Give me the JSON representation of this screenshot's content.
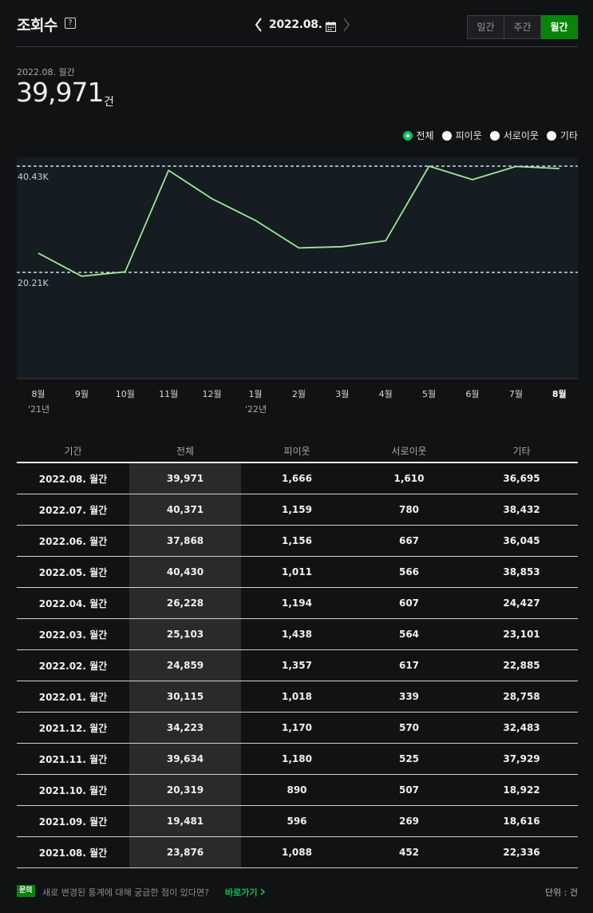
{
  "header": {
    "title": "조회수",
    "help_icon": "?",
    "current_period": "2022.08.",
    "period_tabs": [
      "일간",
      "주간",
      "월간"
    ],
    "active_tab": "월간"
  },
  "summary": {
    "period_label": "2022.08. 월간",
    "value": "39,971",
    "unit": "건"
  },
  "legend": {
    "items": [
      "전체",
      "피이웃",
      "서로이웃",
      "기타"
    ],
    "selected": "전체"
  },
  "chart_data": {
    "type": "line",
    "series": [
      {
        "name": "전체",
        "values": [
          23876,
          19481,
          20319,
          39634,
          34223,
          30115,
          24859,
          25103,
          26228,
          40430,
          37868,
          40371,
          39971
        ]
      }
    ],
    "categories": [
      "8월",
      "9월",
      "10월",
      "11월",
      "12월",
      "1월",
      "2월",
      "3월",
      "4월",
      "5월",
      "6월",
      "7월",
      "8월"
    ],
    "year_labels": [
      {
        "index": 0,
        "text": "'21년"
      },
      {
        "index": 5,
        "text": "'22년"
      }
    ],
    "reference_lines": [
      {
        "label": "40.43K",
        "value": 40430
      },
      {
        "label": "20.21K",
        "value": 20215
      }
    ],
    "colors": {
      "line": "#9fe79a",
      "plot_bg": "#151d22",
      "grid": "#ffffff"
    }
  },
  "table": {
    "headers": [
      "기간",
      "전체",
      "피이웃",
      "서로이웃",
      "기타"
    ],
    "rows": [
      [
        "2022.08. 월간",
        "39,971",
        "1,666",
        "1,610",
        "36,695"
      ],
      [
        "2022.07. 월간",
        "40,371",
        "1,159",
        "780",
        "38,432"
      ],
      [
        "2022.06. 월간",
        "37,868",
        "1,156",
        "667",
        "36,045"
      ],
      [
        "2022.05. 월간",
        "40,430",
        "1,011",
        "566",
        "38,853"
      ],
      [
        "2022.04. 월간",
        "26,228",
        "1,194",
        "607",
        "24,427"
      ],
      [
        "2022.03. 월간",
        "25,103",
        "1,438",
        "564",
        "23,101"
      ],
      [
        "2022.02. 월간",
        "24,859",
        "1,357",
        "617",
        "22,885"
      ],
      [
        "2022.01. 월간",
        "30,115",
        "1,018",
        "339",
        "28,758"
      ],
      [
        "2021.12. 월간",
        "34,223",
        "1,170",
        "570",
        "32,483"
      ],
      [
        "2021.11. 월간",
        "39,634",
        "1,180",
        "525",
        "37,929"
      ],
      [
        "2021.10. 월간",
        "20,319",
        "890",
        "507",
        "18,922"
      ],
      [
        "2021.09. 월간",
        "19,481",
        "596",
        "269",
        "18,616"
      ],
      [
        "2021.08. 월간",
        "23,876",
        "1,088",
        "452",
        "22,336"
      ]
    ]
  },
  "footer": {
    "badge": "문의",
    "text": "새로 변경된 통계에 대해 궁금한 점이 있다면?",
    "link": "바로가기",
    "unit_label": "단위 : 건"
  },
  "accent_color": "#07840a"
}
